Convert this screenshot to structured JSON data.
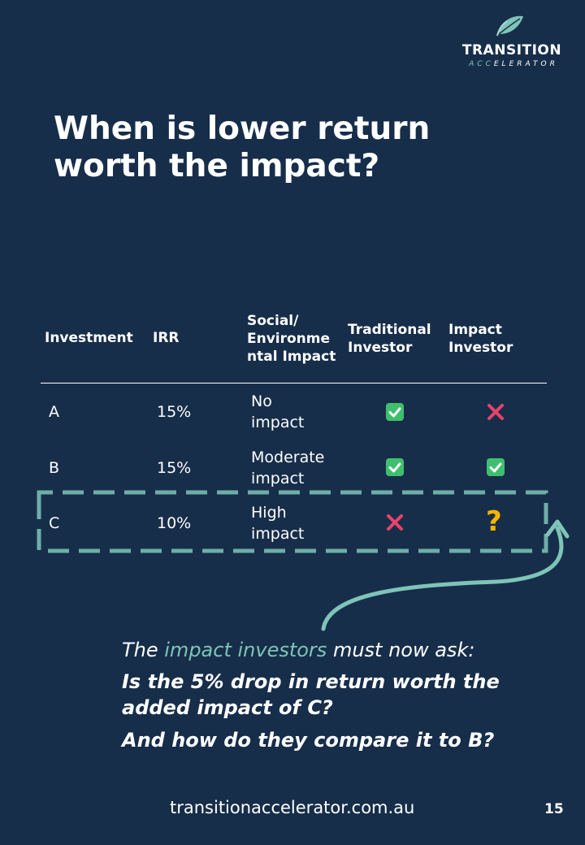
{
  "logo": {
    "title": "TRANSITION",
    "subtitle_accent": "ACC",
    "subtitle_rest": "ELERATOR"
  },
  "title": {
    "line1": "When is lower return",
    "line2": "worth the impact?"
  },
  "table": {
    "headers": {
      "investment": "Investment",
      "irr": "IRR",
      "impact_line1": "Social/",
      "impact_line2": "Environme",
      "impact_line3": "ntal Impact",
      "traditional_line1": "Traditional",
      "traditional_line2": "Investor",
      "impact_investor_line1": "Impact",
      "impact_investor_line2": "Investor"
    },
    "rows": [
      {
        "investment": "A",
        "irr": "15%",
        "impact_line1": "No",
        "impact_line2": "impact",
        "traditional": "check",
        "impact_investor": "cross"
      },
      {
        "investment": "B",
        "irr": "15%",
        "impact_line1": "Moderate",
        "impact_line2": "impact",
        "traditional": "check",
        "impact_investor": "check"
      },
      {
        "investment": "C",
        "irr": "10%",
        "impact_line1": "High",
        "impact_line2": "impact",
        "traditional": "cross",
        "impact_investor": "question"
      }
    ],
    "question_mark": "?"
  },
  "callout": {
    "lead_before": "The ",
    "lead_highlight": "impact investors",
    "lead_after": " must now ask:",
    "question1_line1": "Is the 5% drop in return worth the",
    "question1_line2": "added impact of C?",
    "question2": "And how do they compare it to B?"
  },
  "footer": {
    "url": "transitionaccelerator.com.au",
    "page": "15"
  },
  "colors": {
    "background": "#172e4a",
    "accent_teal": "#7ec4b8",
    "check_green": "#3fbf6e",
    "cross_red": "#e8436b",
    "question_yellow": "#f5b400"
  }
}
